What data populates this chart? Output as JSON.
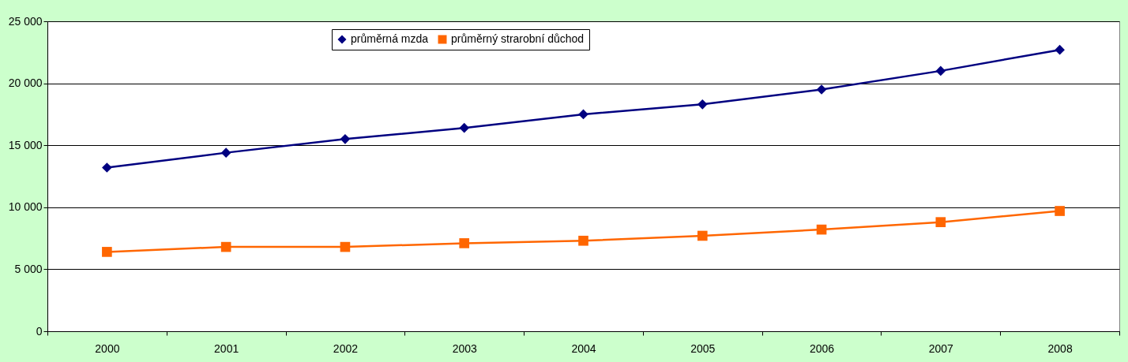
{
  "chart_data": {
    "type": "line",
    "categories": [
      "2000",
      "2001",
      "2002",
      "2003",
      "2004",
      "2005",
      "2006",
      "2007",
      "2008"
    ],
    "series": [
      {
        "name": "průměrná mzda",
        "color": "#000080",
        "marker": "diamond",
        "values": [
          13200,
          14400,
          15500,
          16400,
          17500,
          18300,
          19500,
          21000,
          22700
        ]
      },
      {
        "name": "průměrný strarobní důchod",
        "color": "#ff6600",
        "marker": "square",
        "values": [
          6400,
          6800,
          6800,
          7100,
          7300,
          7700,
          8200,
          8800,
          9700
        ]
      }
    ],
    "ylim": [
      0,
      25000
    ],
    "yticks": [
      {
        "value": 0,
        "label": "0"
      },
      {
        "value": 5000,
        "label": "5 000"
      },
      {
        "value": 10000,
        "label": "10 000"
      },
      {
        "value": 15000,
        "label": "15 000"
      },
      {
        "value": 20000,
        "label": "20 000"
      },
      {
        "value": 25000,
        "label": "25 000"
      }
    ],
    "grid": "y",
    "legend": "top",
    "line_style": "solid"
  }
}
